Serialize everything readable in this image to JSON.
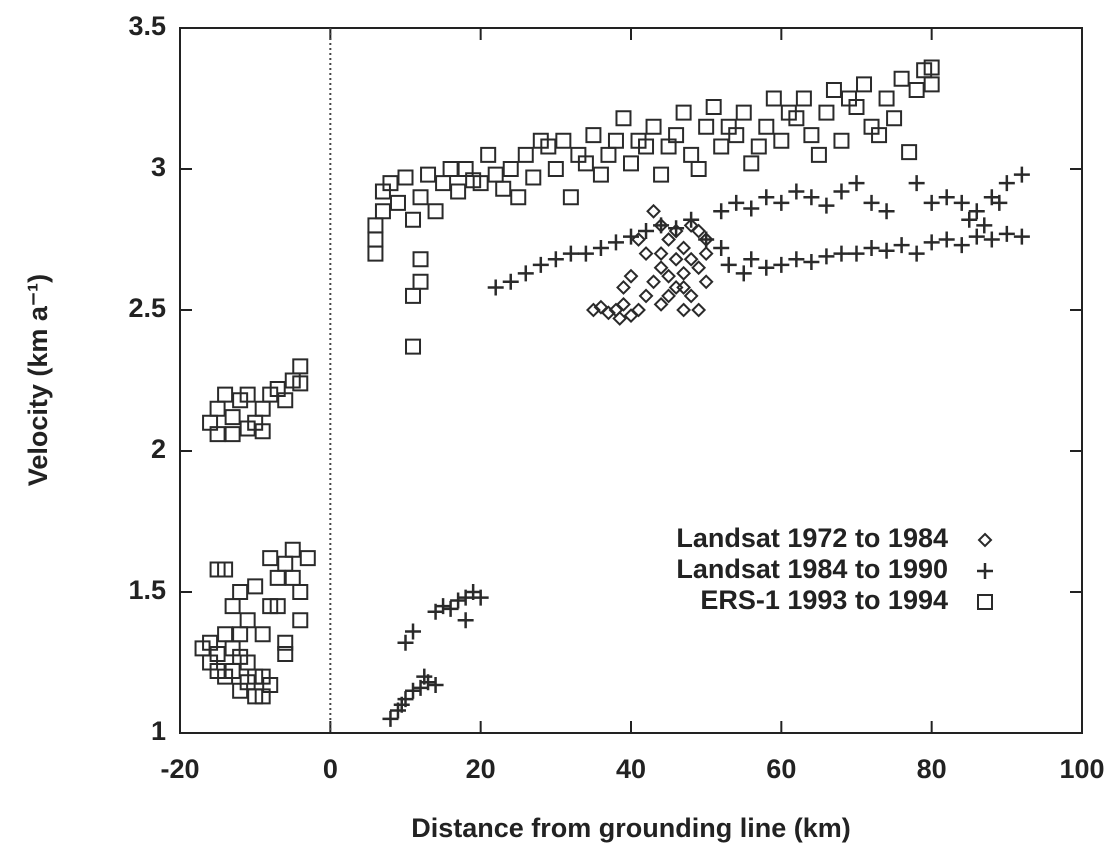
{
  "chart_data": {
    "type": "scatter",
    "xlabel": "Distance from grounding line (km)",
    "ylabel": "Velocity (km a⁻¹)",
    "xlim": [
      -20,
      100
    ],
    "ylim": [
      1,
      3.5
    ],
    "xticks": [
      -20,
      0,
      20,
      40,
      60,
      80,
      100
    ],
    "yticks": [
      1,
      1.5,
      2,
      2.5,
      3,
      3.5
    ],
    "vline": 0,
    "legend": "lower right",
    "series": [
      {
        "name": "Landsat 1972 to 1984",
        "marker": "diamond",
        "color": "#2a2a2a",
        "x": [
          35,
          36,
          37,
          38,
          38.5,
          39,
          40,
          41,
          42,
          43,
          44,
          44,
          45,
          45,
          46,
          46,
          47,
          47,
          48,
          48,
          49,
          49,
          50,
          50,
          43,
          44,
          46,
          47,
          42,
          41,
          40,
          39,
          44,
          45,
          48,
          49,
          50,
          47
        ],
        "values": [
          2.5,
          2.51,
          2.49,
          2.5,
          2.47,
          2.52,
          2.48,
          2.5,
          2.55,
          2.6,
          2.65,
          2.7,
          2.62,
          2.75,
          2.58,
          2.68,
          2.63,
          2.72,
          2.55,
          2.8,
          2.5,
          2.65,
          2.7,
          2.75,
          2.85,
          2.8,
          2.78,
          2.5,
          2.7,
          2.75,
          2.62,
          2.58,
          2.52,
          2.55,
          2.68,
          2.78,
          2.6,
          2.58
        ]
      },
      {
        "name": "Landsat 1984 to 1990",
        "marker": "plus",
        "color": "#2a2a2a",
        "x": [
          22,
          24,
          26,
          28,
          30,
          32,
          34,
          36,
          38,
          40,
          42,
          44,
          46,
          48,
          50,
          52,
          53,
          55,
          56,
          58,
          60,
          62,
          64,
          66,
          68,
          70,
          72,
          74,
          76,
          78,
          80,
          82,
          84,
          86,
          88,
          90,
          92,
          52,
          54,
          56,
          58,
          60,
          62,
          64,
          66,
          68,
          70,
          72,
          74,
          78,
          80,
          82,
          84,
          86,
          88,
          90,
          92,
          85,
          87,
          89,
          8,
          9,
          9.5,
          10,
          10,
          11,
          11,
          12,
          12.5,
          13,
          14,
          15,
          16,
          17,
          18,
          18,
          19,
          20,
          14
        ],
        "values": [
          2.58,
          2.6,
          2.63,
          2.66,
          2.68,
          2.7,
          2.7,
          2.72,
          2.74,
          2.76,
          2.78,
          2.8,
          2.79,
          2.82,
          2.75,
          2.72,
          2.66,
          2.63,
          2.68,
          2.65,
          2.66,
          2.68,
          2.67,
          2.69,
          2.7,
          2.7,
          2.72,
          2.71,
          2.73,
          2.7,
          2.74,
          2.75,
          2.73,
          2.76,
          2.75,
          2.77,
          2.76,
          2.85,
          2.88,
          2.86,
          2.9,
          2.88,
          2.92,
          2.9,
          2.87,
          2.92,
          2.95,
          2.88,
          2.85,
          2.95,
          2.88,
          2.9,
          2.88,
          2.85,
          2.9,
          2.95,
          2.98,
          2.82,
          2.8,
          2.88,
          1.05,
          1.08,
          1.1,
          1.12,
          1.32,
          1.36,
          1.15,
          1.16,
          1.2,
          1.18,
          1.43,
          1.45,
          1.44,
          1.47,
          1.48,
          1.4,
          1.5,
          1.48,
          1.17
        ]
      },
      {
        "name": "ERS-1 1993 to 1994",
        "marker": "square",
        "color": "#2a2a2a",
        "x": [
          -17,
          -16,
          -15,
          -14,
          -13,
          -12,
          -11,
          -10,
          -9,
          -8,
          -15,
          -13,
          -11,
          -10,
          -16,
          -14,
          -12,
          -9,
          -15,
          -14,
          -13,
          -12,
          -11,
          -10,
          -9,
          -8,
          -7,
          -6,
          -5,
          -4,
          -5,
          -6,
          -7,
          -8,
          -3,
          -6,
          -4,
          -12,
          -16,
          -15,
          -14,
          -13,
          -12,
          -11,
          -10,
          -9,
          -8,
          -7,
          -6,
          -5,
          -4,
          -4,
          -15,
          -13,
          -11,
          -9,
          11,
          11,
          12,
          12,
          6,
          6,
          6,
          7,
          7,
          8,
          9,
          10,
          11,
          12,
          13,
          14,
          15,
          17,
          18,
          20,
          21,
          23,
          24,
          26,
          27,
          29,
          30,
          32,
          33,
          35,
          36,
          38,
          39,
          40,
          42,
          43,
          44,
          46,
          47,
          48,
          50,
          51,
          52,
          54,
          55,
          56,
          58,
          59,
          60,
          62,
          63,
          64,
          66,
          67,
          68,
          70,
          71,
          72,
          74,
          75,
          76,
          77,
          78,
          79,
          80,
          80,
          73,
          65,
          57,
          49,
          41,
          34,
          28,
          22,
          16,
          25,
          37,
          45,
          53,
          61,
          69,
          31,
          19
        ],
        "values": [
          1.3,
          1.25,
          1.28,
          1.2,
          1.22,
          1.15,
          1.18,
          1.13,
          1.2,
          1.17,
          1.22,
          1.3,
          1.25,
          1.2,
          1.32,
          1.35,
          1.27,
          1.13,
          1.58,
          1.58,
          1.45,
          1.5,
          1.4,
          1.52,
          1.35,
          1.45,
          1.55,
          1.6,
          1.65,
          1.5,
          1.55,
          1.32,
          1.45,
          1.62,
          1.62,
          1.28,
          1.4,
          1.35,
          2.1,
          2.15,
          2.2,
          2.12,
          2.18,
          2.08,
          2.1,
          2.15,
          2.2,
          2.22,
          2.18,
          2.25,
          2.3,
          2.24,
          2.06,
          2.06,
          2.2,
          2.07,
          2.37,
          2.55,
          2.6,
          2.68,
          2.7,
          2.75,
          2.8,
          2.85,
          2.92,
          2.95,
          2.88,
          2.97,
          2.82,
          2.9,
          2.98,
          2.85,
          2.95,
          2.92,
          3.0,
          2.95,
          3.05,
          2.93,
          3.0,
          3.05,
          2.97,
          3.08,
          3.0,
          2.9,
          3.05,
          3.12,
          2.98,
          3.1,
          3.18,
          3.02,
          3.08,
          3.15,
          2.98,
          3.12,
          3.2,
          3.05,
          3.15,
          3.22,
          3.08,
          3.12,
          3.2,
          3.02,
          3.15,
          3.25,
          3.1,
          3.18,
          3.25,
          3.12,
          3.2,
          3.28,
          3.1,
          3.22,
          3.3,
          3.15,
          3.25,
          3.18,
          3.32,
          3.06,
          3.28,
          3.35,
          3.3,
          3.36,
          3.12,
          3.05,
          3.08,
          3.0,
          3.1,
          3.02,
          3.1,
          2.98,
          3.0,
          2.9,
          3.05,
          3.08,
          3.15,
          3.2,
          3.25,
          3.1,
          2.96
        ]
      }
    ]
  }
}
